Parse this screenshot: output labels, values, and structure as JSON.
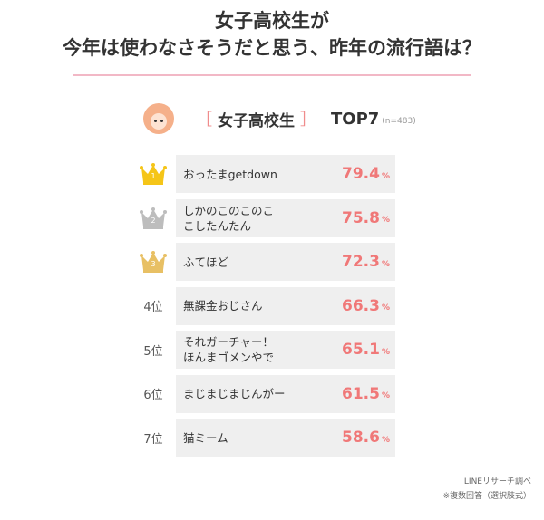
{
  "title": {
    "line1": "女子高校生が",
    "line2": "今年は使わなさそうだと思う、昨年の流行語は？"
  },
  "section": {
    "bracket_open": "［",
    "label": "女子高校生",
    "bracket_close": "］",
    "top": "TOP7",
    "n": "(n=483)"
  },
  "colors": {
    "accent": "#f07878",
    "gold": "#f5c518",
    "silver": "#bdbdbd",
    "bronze": "#e8c064",
    "bar": "#efefef"
  },
  "chart_data": {
    "type": "bar",
    "unit": "%",
    "rows": [
      {
        "rank": "1",
        "rank_label": "",
        "icon": "gold-crown-icon",
        "label": "おったまgetdown",
        "value": 79.4
      },
      {
        "rank": "2",
        "rank_label": "",
        "icon": "silver-crown-icon",
        "label": "しかのこのこのこ\nこしたんたん",
        "value": 75.8
      },
      {
        "rank": "3",
        "rank_label": "",
        "icon": "bronze-crown-icon",
        "label": "ふてほど",
        "value": 72.3
      },
      {
        "rank": "4",
        "rank_label": "4位",
        "icon": "",
        "label": "無課金おじさん",
        "value": 66.3
      },
      {
        "rank": "5",
        "rank_label": "5位",
        "icon": "",
        "label": "それガーチャー！\nほんまゴメンやで",
        "value": 65.1
      },
      {
        "rank": "6",
        "rank_label": "6位",
        "icon": "",
        "label": "まじまじまじんがー",
        "value": 61.5
      },
      {
        "rank": "7",
        "rank_label": "7位",
        "icon": "",
        "label": "猫ミーム",
        "value": 58.6
      }
    ]
  },
  "source": {
    "line1": "LINEリサーチ調べ",
    "line2": "※複数回答（選択肢式）"
  }
}
